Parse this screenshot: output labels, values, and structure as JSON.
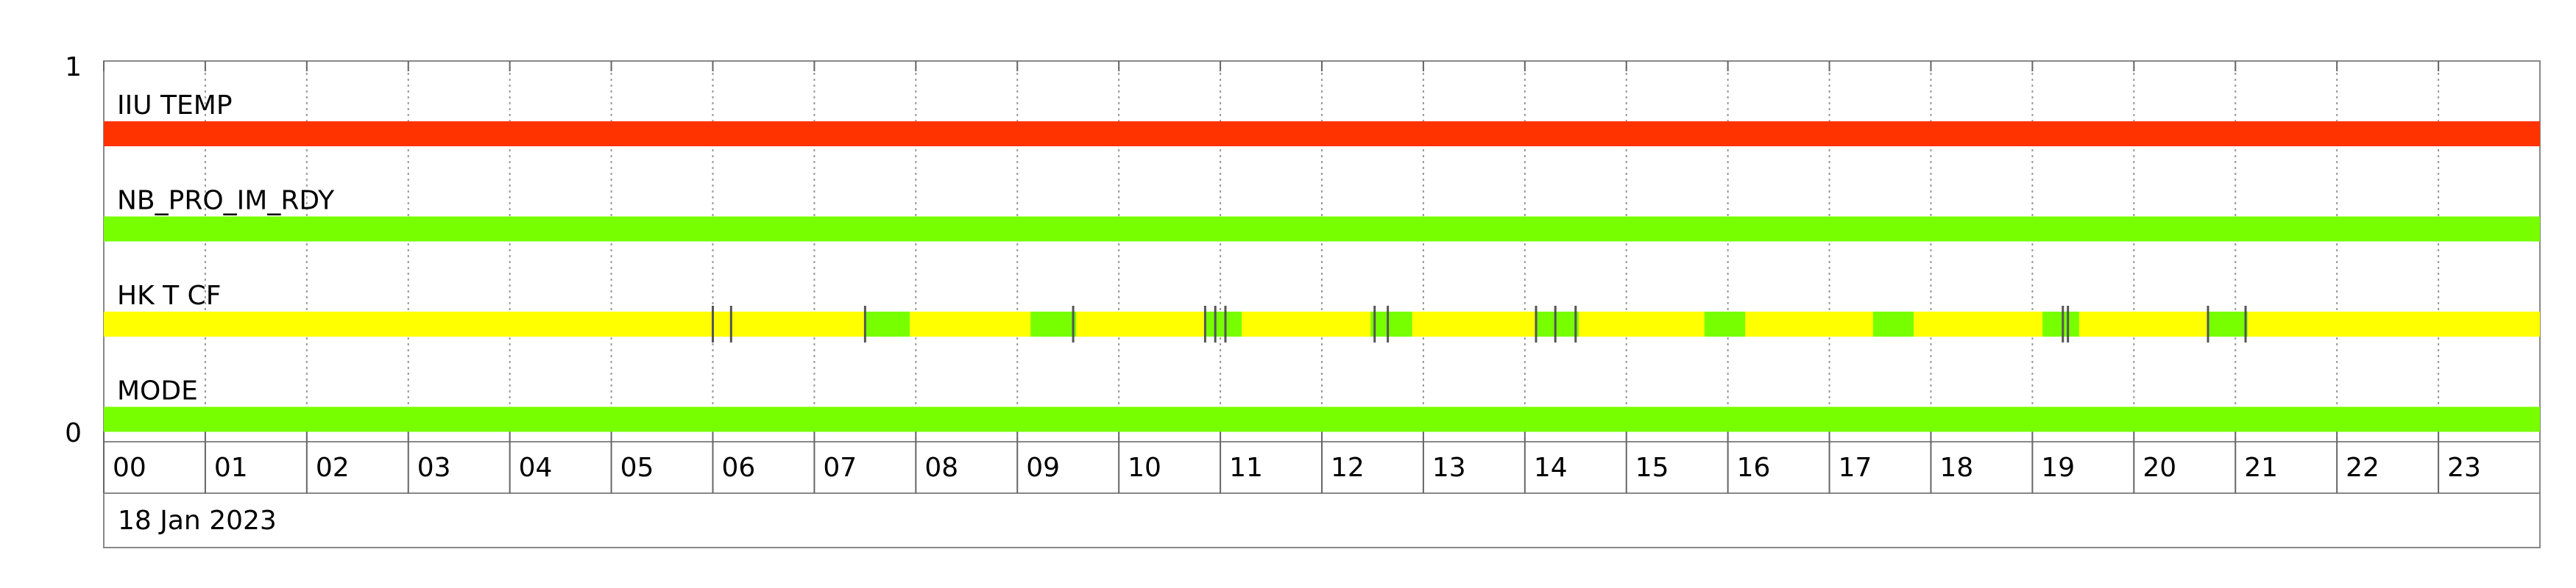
{
  "chart_data": {
    "type": "timeline",
    "date_label": "18 Jan 2023",
    "ylim": [
      0,
      1
    ],
    "yticks": [
      0,
      1
    ],
    "xlim": [
      0,
      24
    ],
    "xticks": [
      {
        "value": 0,
        "label": "00"
      },
      {
        "value": 1,
        "label": "01"
      },
      {
        "value": 2,
        "label": "02"
      },
      {
        "value": 3,
        "label": "03"
      },
      {
        "value": 4,
        "label": "04"
      },
      {
        "value": 5,
        "label": "05"
      },
      {
        "value": 6,
        "label": "06"
      },
      {
        "value": 7,
        "label": "07"
      },
      {
        "value": 8,
        "label": "08"
      },
      {
        "value": 9,
        "label": "09"
      },
      {
        "value": 10,
        "label": "10"
      },
      {
        "value": 11,
        "label": "11"
      },
      {
        "value": 12,
        "label": "12"
      },
      {
        "value": 13,
        "label": "13"
      },
      {
        "value": 14,
        "label": "14"
      },
      {
        "value": 15,
        "label": "15"
      },
      {
        "value": 16,
        "label": "16"
      },
      {
        "value": 17,
        "label": "17"
      },
      {
        "value": 18,
        "label": "18"
      },
      {
        "value": 19,
        "label": "19"
      },
      {
        "value": 20,
        "label": "20"
      },
      {
        "value": 21,
        "label": "21"
      },
      {
        "value": 22,
        "label": "22"
      },
      {
        "value": 23,
        "label": "23"
      }
    ],
    "grid": true,
    "rows": [
      {
        "name": "IIU TEMP",
        "segments": [
          {
            "start": 0,
            "end": 24,
            "color": "#ff3300"
          }
        ]
      },
      {
        "name": "NB_PRO_IM_RDY",
        "segments": [
          {
            "start": 0,
            "end": 24,
            "color": "#77ff00"
          }
        ]
      },
      {
        "name": "HK T CF",
        "segments": [
          {
            "start": 0,
            "end": 24,
            "color": "#ffff00"
          },
          {
            "start": 7.5,
            "end": 7.94,
            "color": "#77ff00"
          },
          {
            "start": 9.13,
            "end": 9.58,
            "color": "#77ff00"
          },
          {
            "start": 10.85,
            "end": 11.21,
            "color": "#77ff00"
          },
          {
            "start": 12.48,
            "end": 12.89,
            "color": "#77ff00"
          },
          {
            "start": 14.11,
            "end": 14.53,
            "color": "#77ff00"
          },
          {
            "start": 15.77,
            "end": 16.17,
            "color": "#77ff00"
          },
          {
            "start": 17.43,
            "end": 17.83,
            "color": "#77ff00"
          },
          {
            "start": 19.1,
            "end": 19.46,
            "color": "#77ff00"
          },
          {
            "start": 20.73,
            "end": 21.12,
            "color": "#77ff00"
          }
        ],
        "markers": [
          6.0,
          6.18,
          7.5,
          9.55,
          10.85,
          10.95,
          11.05,
          12.52,
          12.65,
          14.11,
          14.3,
          14.5,
          19.3,
          19.35,
          20.73,
          21.1
        ],
        "marker_color": "#555555"
      },
      {
        "name": "MODE",
        "segments": [
          {
            "start": 0,
            "end": 24,
            "color": "#77ff00"
          }
        ]
      }
    ]
  }
}
